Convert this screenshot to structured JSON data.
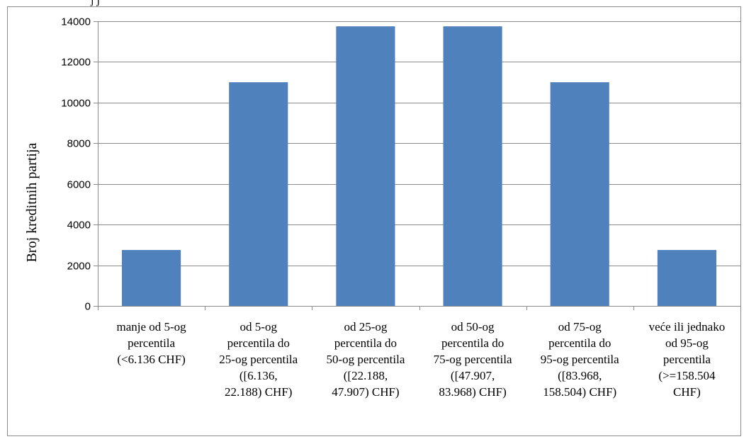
{
  "chart_data": {
    "type": "bar",
    "title_fragment": "j j",
    "ylabel": "Broj kreditnih partija",
    "xlabel": "",
    "ylim": [
      0,
      14000
    ],
    "yticks": [
      "0",
      "2000",
      "4000",
      "6000",
      "8000",
      "10000",
      "12000",
      "14000"
    ],
    "grid": "horizontal",
    "legend": "none",
    "bar_color": "#4F81BD",
    "categories": [
      [
        "manje od 5-og",
        "percentila",
        "(<6.136 CHF)"
      ],
      [
        "od 5-og",
        "percentila do",
        "25-og percentila",
        "([6.136,",
        "22.188) CHF)"
      ],
      [
        "od 25-og",
        "percentila do",
        "50-og percentila",
        "([22.188,",
        "47.907) CHF)"
      ],
      [
        "od 50-og",
        "percentila do",
        "75-og percentila",
        "([47.907,",
        "83.968) CHF)"
      ],
      [
        "od 75-og",
        "percentila do",
        "95-og percentila",
        "([83.968,",
        "158.504) CHF)"
      ],
      [
        "veće ili jednako",
        "od 95-og",
        "percentila",
        "(>=158.504",
        "CHF)"
      ]
    ],
    "values": [
      2750,
      11000,
      13750,
      13750,
      11000,
      2750
    ]
  }
}
